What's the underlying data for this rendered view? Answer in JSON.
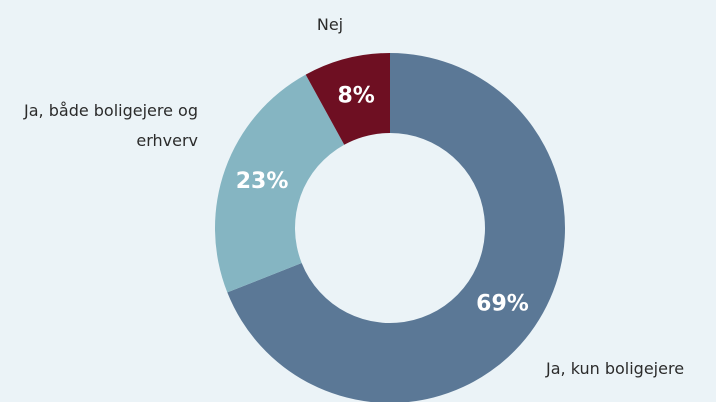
{
  "chart_data": {
    "type": "donut",
    "categories": [
      "Ja, kun boligejere",
      "Ja, både boligejere og erhverv",
      "Nej"
    ],
    "values": [
      69,
      23,
      8
    ],
    "value_labels": [
      "69%",
      "23%",
      "8%"
    ],
    "colors": [
      "#5b7896",
      "#85b5c2",
      "#6e0f22"
    ]
  }
}
